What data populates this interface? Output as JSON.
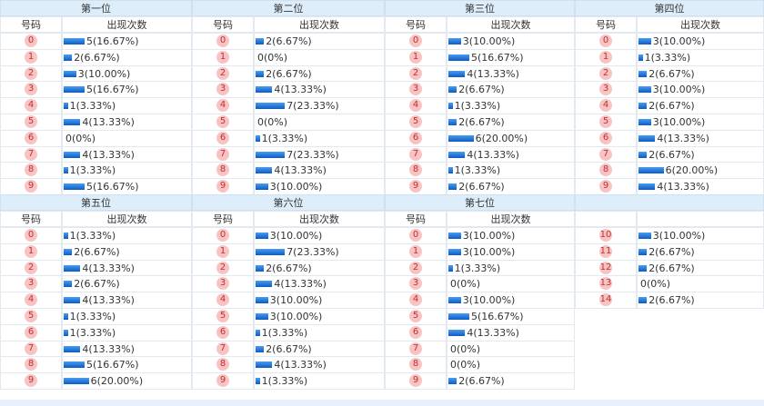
{
  "blocks": [
    {
      "title": "第一位",
      "headers": [
        "号码",
        "出现次数"
      ],
      "rows": [
        {
          "number": "0",
          "count": 5,
          "label": "5(16.67%)"
        },
        {
          "number": "1",
          "count": 2,
          "label": "2(6.67%)"
        },
        {
          "number": "2",
          "count": 3,
          "label": "3(10.00%)"
        },
        {
          "number": "3",
          "count": 5,
          "label": "5(16.67%)"
        },
        {
          "number": "4",
          "count": 1,
          "label": "1(3.33%)"
        },
        {
          "number": "5",
          "count": 4,
          "label": "4(13.33%)"
        },
        {
          "number": "6",
          "count": 0,
          "label": "0(0%)"
        },
        {
          "number": "7",
          "count": 4,
          "label": "4(13.33%)"
        },
        {
          "number": "8",
          "count": 1,
          "label": "1(3.33%)"
        },
        {
          "number": "9",
          "count": 5,
          "label": "5(16.67%)"
        }
      ]
    },
    {
      "title": "第二位",
      "headers": [
        "号码",
        "出现次数"
      ],
      "rows": [
        {
          "number": "0",
          "count": 2,
          "label": "2(6.67%)"
        },
        {
          "number": "1",
          "count": 0,
          "label": "0(0%)"
        },
        {
          "number": "2",
          "count": 2,
          "label": "2(6.67%)"
        },
        {
          "number": "3",
          "count": 4,
          "label": "4(13.33%)"
        },
        {
          "number": "4",
          "count": 7,
          "label": "7(23.33%)"
        },
        {
          "number": "5",
          "count": 0,
          "label": "0(0%)"
        },
        {
          "number": "6",
          "count": 1,
          "label": "1(3.33%)"
        },
        {
          "number": "7",
          "count": 7,
          "label": "7(23.33%)"
        },
        {
          "number": "8",
          "count": 4,
          "label": "4(13.33%)"
        },
        {
          "number": "9",
          "count": 3,
          "label": "3(10.00%)"
        }
      ]
    },
    {
      "title": "第三位",
      "headers": [
        "号码",
        "出现次数"
      ],
      "rows": [
        {
          "number": "0",
          "count": 3,
          "label": "3(10.00%)"
        },
        {
          "number": "1",
          "count": 5,
          "label": "5(16.67%)"
        },
        {
          "number": "2",
          "count": 4,
          "label": "4(13.33%)"
        },
        {
          "number": "3",
          "count": 2,
          "label": "2(6.67%)"
        },
        {
          "number": "4",
          "count": 1,
          "label": "1(3.33%)"
        },
        {
          "number": "5",
          "count": 2,
          "label": "2(6.67%)"
        },
        {
          "number": "6",
          "count": 6,
          "label": "6(20.00%)"
        },
        {
          "number": "7",
          "count": 4,
          "label": "4(13.33%)"
        },
        {
          "number": "8",
          "count": 1,
          "label": "1(3.33%)"
        },
        {
          "number": "9",
          "count": 2,
          "label": "2(6.67%)"
        }
      ]
    },
    {
      "title": "第四位",
      "headers": [
        "号码",
        "出现次数"
      ],
      "rows": [
        {
          "number": "0",
          "count": 3,
          "label": "3(10.00%)"
        },
        {
          "number": "1",
          "count": 1,
          "label": "1(3.33%)"
        },
        {
          "number": "2",
          "count": 2,
          "label": "2(6.67%)"
        },
        {
          "number": "3",
          "count": 3,
          "label": "3(10.00%)"
        },
        {
          "number": "4",
          "count": 2,
          "label": "2(6.67%)"
        },
        {
          "number": "5",
          "count": 3,
          "label": "3(10.00%)"
        },
        {
          "number": "6",
          "count": 4,
          "label": "4(13.33%)"
        },
        {
          "number": "7",
          "count": 2,
          "label": "2(6.67%)"
        },
        {
          "number": "8",
          "count": 6,
          "label": "6(20.00%)"
        },
        {
          "number": "9",
          "count": 4,
          "label": "4(13.33%)"
        }
      ]
    },
    {
      "title": "第五位",
      "headers": [
        "号码",
        "出现次数"
      ],
      "rows": [
        {
          "number": "0",
          "count": 1,
          "label": "1(3.33%)"
        },
        {
          "number": "1",
          "count": 2,
          "label": "2(6.67%)"
        },
        {
          "number": "2",
          "count": 4,
          "label": "4(13.33%)"
        },
        {
          "number": "3",
          "count": 2,
          "label": "2(6.67%)"
        },
        {
          "number": "4",
          "count": 4,
          "label": "4(13.33%)"
        },
        {
          "number": "5",
          "count": 1,
          "label": "1(3.33%)"
        },
        {
          "number": "6",
          "count": 1,
          "label": "1(3.33%)"
        },
        {
          "number": "7",
          "count": 4,
          "label": "4(13.33%)"
        },
        {
          "number": "8",
          "count": 5,
          "label": "5(16.67%)"
        },
        {
          "number": "9",
          "count": 6,
          "label": "6(20.00%)"
        }
      ]
    },
    {
      "title": "第六位",
      "headers": [
        "号码",
        "出现次数"
      ],
      "rows": [
        {
          "number": "0",
          "count": 3,
          "label": "3(10.00%)"
        },
        {
          "number": "1",
          "count": 7,
          "label": "7(23.33%)"
        },
        {
          "number": "2",
          "count": 2,
          "label": "2(6.67%)"
        },
        {
          "number": "3",
          "count": 4,
          "label": "4(13.33%)"
        },
        {
          "number": "4",
          "count": 3,
          "label": "3(10.00%)"
        },
        {
          "number": "5",
          "count": 3,
          "label": "3(10.00%)"
        },
        {
          "number": "6",
          "count": 1,
          "label": "1(3.33%)"
        },
        {
          "number": "7",
          "count": 2,
          "label": "2(6.67%)"
        },
        {
          "number": "8",
          "count": 4,
          "label": "4(13.33%)"
        },
        {
          "number": "9",
          "count": 1,
          "label": "1(3.33%)"
        }
      ]
    },
    {
      "title": "第七位",
      "headers": [
        "号码",
        "出现次数"
      ],
      "rows": [
        {
          "number": "0",
          "count": 3,
          "label": "3(10.00%)"
        },
        {
          "number": "1",
          "count": 3,
          "label": "3(10.00%)"
        },
        {
          "number": "2",
          "count": 1,
          "label": "1(3.33%)"
        },
        {
          "number": "3",
          "count": 0,
          "label": "0(0%)"
        },
        {
          "number": "4",
          "count": 3,
          "label": "3(10.00%)"
        },
        {
          "number": "5",
          "count": 5,
          "label": "5(16.67%)"
        },
        {
          "number": "6",
          "count": 4,
          "label": "4(13.33%)"
        },
        {
          "number": "7",
          "count": 0,
          "label": "0(0%)"
        },
        {
          "number": "8",
          "count": 0,
          "label": "0(0%)"
        },
        {
          "number": "9",
          "count": 2,
          "label": "2(6.67%)"
        }
      ]
    },
    {
      "rows": [
        {
          "number": "10",
          "count": 3,
          "label": "3(10.00%)"
        },
        {
          "number": "11",
          "count": 2,
          "label": "2(6.67%)"
        },
        {
          "number": "12",
          "count": 2,
          "label": "2(6.67%)"
        },
        {
          "number": "13",
          "count": 0,
          "label": "0(0%)"
        },
        {
          "number": "14",
          "count": 2,
          "label": "2(6.67%)"
        }
      ]
    }
  ]
}
